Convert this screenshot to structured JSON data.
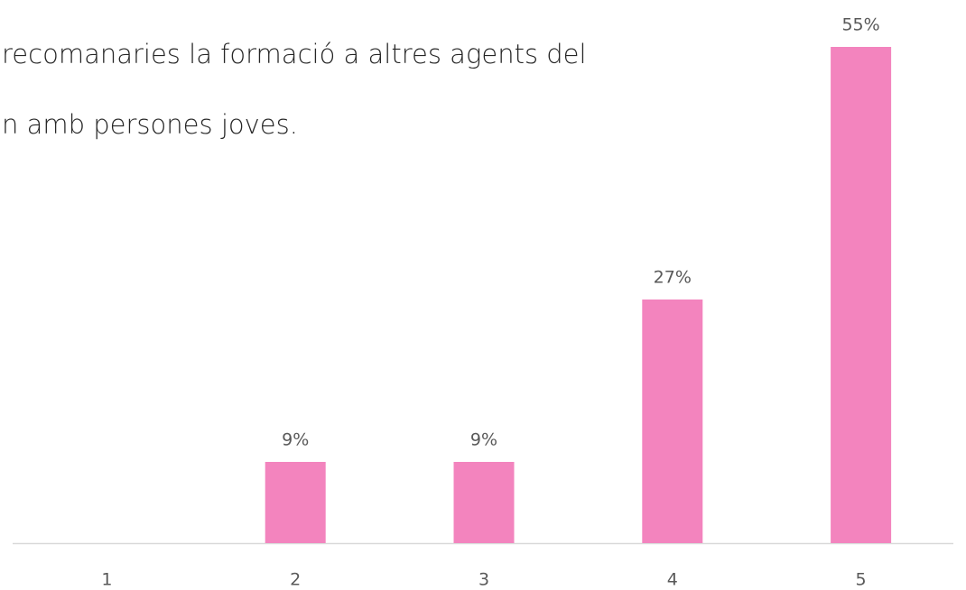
{
  "chart_data": {
    "type": "bar",
    "title": [
      "recomanaries la formació a altres agents del",
      "n amb persones joves."
    ],
    "categories": [
      "1",
      "2",
      "3",
      "4",
      "5"
    ],
    "values": [
      0,
      9,
      9,
      27,
      55
    ],
    "value_labels": [
      null,
      "9%",
      "9%",
      "27%",
      "55%"
    ],
    "color": "#f384be"
  }
}
